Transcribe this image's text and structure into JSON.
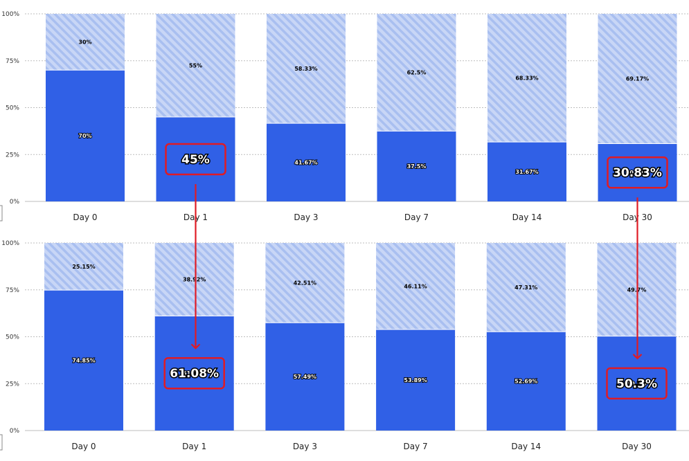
{
  "colors": {
    "retained": "#3060e6",
    "churned_bg": "#c8d6f6",
    "churned_stripe": "#a9bff0",
    "callout": "#e01b24",
    "grid": "#bdbdbd"
  },
  "chart_data": [
    {
      "type": "bar",
      "stacked": true,
      "categories": [
        "Day 0",
        "Day 1",
        "Day 3",
        "Day 7",
        "Day 14",
        "Day 30"
      ],
      "y_ticks": [
        "0%",
        "25%",
        "50%",
        "75%",
        "100%"
      ],
      "ylim": [
        0,
        100
      ],
      "series": [
        {
          "values": [
            70,
            45,
            41.67,
            37.5,
            31.67,
            30.83
          ],
          "labels": [
            "70%",
            "45%",
            "41.67%",
            "37.5%",
            "31.67%",
            "30.83%"
          ]
        },
        {
          "values": [
            30,
            55,
            58.33,
            62.5,
            68.33,
            69.17
          ],
          "labels": [
            "30%",
            "55%",
            "58.33%",
            "62.5%",
            "68.33%",
            "69.17%"
          ]
        }
      ],
      "grid": true
    },
    {
      "type": "bar",
      "stacked": true,
      "categories": [
        "Day 0",
        "Day 1",
        "Day 3",
        "Day 7",
        "Day 14",
        "Day 30"
      ],
      "y_ticks": [
        "0%",
        "25%",
        "50%",
        "75%",
        "100%"
      ],
      "ylim": [
        0,
        100
      ],
      "series": [
        {
          "values": [
            74.85,
            61.08,
            57.49,
            53.89,
            52.69,
            50.3
          ],
          "labels": [
            "74.85%",
            "61.08%",
            "57.49%",
            "53.89%",
            "52.69%",
            "50.3%"
          ]
        },
        {
          "values": [
            25.15,
            38.92,
            42.51,
            46.11,
            47.31,
            49.7
          ],
          "labels": [
            "25.15%",
            "38.92%",
            "42.51%",
            "46.11%",
            "47.31%",
            "49.7%"
          ]
        }
      ],
      "grid": true
    }
  ],
  "callouts": [
    {
      "from_chart": 0,
      "to_chart": 1,
      "category_index": 1,
      "from_label": "45%",
      "to_label": "61.08%"
    },
    {
      "from_chart": 0,
      "to_chart": 1,
      "category_index": 5,
      "from_label": "30.83%",
      "to_label": "50.3%"
    }
  ]
}
